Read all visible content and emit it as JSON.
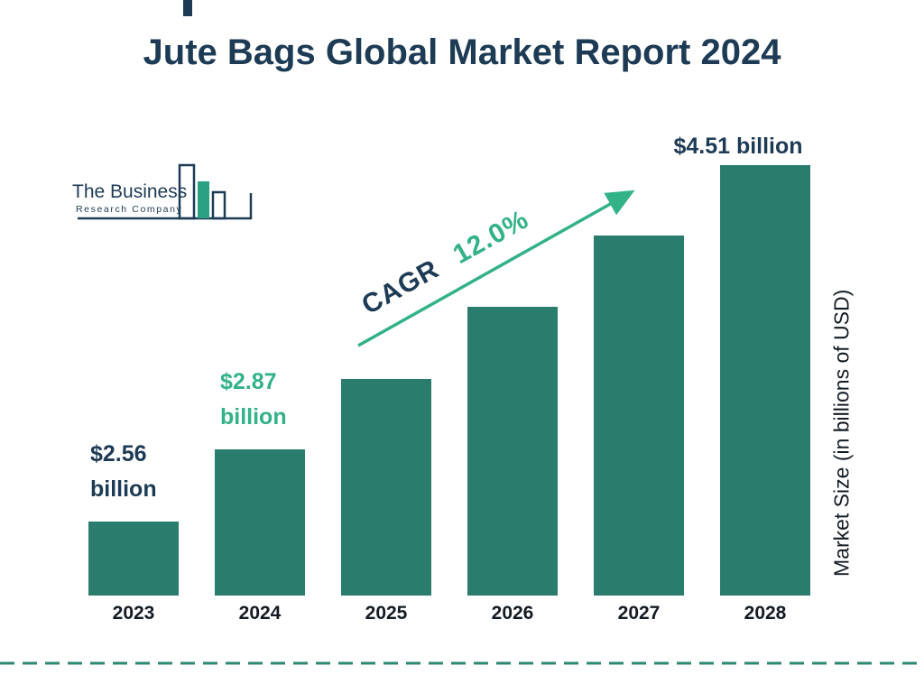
{
  "title": "Jute Bags Global Market Report 2024",
  "logo": {
    "line1": "The Business",
    "line2": "Research Company"
  },
  "colors": {
    "bar": "#2a7d6c",
    "green": "#33b287",
    "navy": "#1d3b55",
    "axis": "#141b24",
    "dash": "#2d8a72"
  },
  "chart_data": {
    "type": "bar",
    "title": "Jute Bags Global Market Report 2024",
    "categories": [
      "2023",
      "2024",
      "2025",
      "2026",
      "2027",
      "2028"
    ],
    "values": [
      2.56,
      2.87,
      3.21,
      3.6,
      4.03,
      4.51
    ],
    "unit": "billions of USD",
    "ylabel": "Market Size (in billions of USD)",
    "xlabel": "",
    "grid": false,
    "legend": false,
    "annotations": [
      {
        "category": "2023",
        "line1": "$2.56",
        "line2": "billion",
        "color": "navy"
      },
      {
        "category": "2024",
        "line1": "$2.87",
        "line2": "billion",
        "color": "green"
      },
      {
        "category": "2028",
        "line1": "$4.51 billion",
        "line2": "",
        "color": "navy"
      }
    ],
    "cagr": {
      "label": "CAGR",
      "value": "12.0%"
    }
  }
}
